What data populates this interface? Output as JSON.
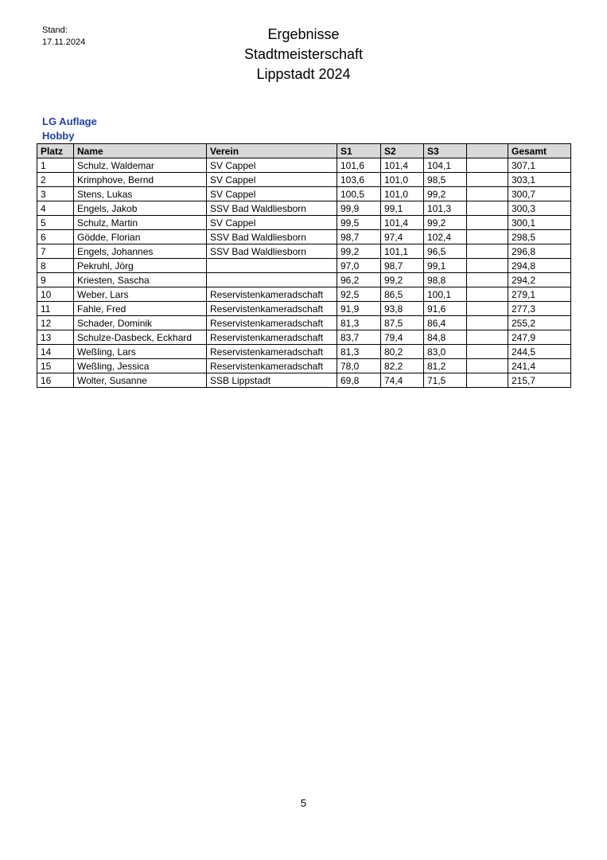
{
  "header": {
    "stand_label": "Stand:",
    "stand_date": "17.11.2024",
    "title_lines": [
      "Ergebnisse",
      "Stadtmeisterschaft",
      "Lippstadt 2024"
    ]
  },
  "section": {
    "discipline": "LG Auflage",
    "class": "Hobby",
    "color": "#1f3fa8"
  },
  "table": {
    "columns": [
      "Platz",
      "Name",
      "Verein",
      "S1",
      "S2",
      "S3",
      "",
      "Gesamt"
    ],
    "rows": [
      [
        "1",
        "Schulz, Waldemar",
        "SV Cappel",
        "101,6",
        "101,4",
        "104,1",
        "",
        "307,1"
      ],
      [
        "2",
        "Krimphove, Bernd",
        "SV Cappel",
        "103,6",
        "101,0",
        "98,5",
        "",
        "303,1"
      ],
      [
        "3",
        "Stens, Lukas",
        "SV Cappel",
        "100,5",
        "101,0",
        "99,2",
        "",
        "300,7"
      ],
      [
        "4",
        "Engels, Jakob",
        "SSV Bad Waldliesborn",
        "99,9",
        "99,1",
        "101,3",
        "",
        "300,3"
      ],
      [
        "5",
        "Schulz, Martin",
        "SV Cappel",
        "99,5",
        "101,4",
        "99,2",
        "",
        "300,1"
      ],
      [
        "6",
        "Gödde, Florian",
        "SSV Bad Waldliesborn",
        "98,7",
        "97,4",
        "102,4",
        "",
        "298,5"
      ],
      [
        "7",
        "Engels, Johannes",
        "SSV Bad Waldliesborn",
        "99,2",
        "101,1",
        "96,5",
        "",
        "296,8"
      ],
      [
        "8",
        "Pekruhl, Jörg",
        "",
        "97,0",
        "98,7",
        "99,1",
        "",
        "294,8"
      ],
      [
        "9",
        "Kriesten, Sascha",
        "",
        "96,2",
        "99,2",
        "98,8",
        "",
        "294,2"
      ],
      [
        "10",
        "Weber, Lars",
        "Reservistenkameradschaft",
        "92,5",
        "86,5",
        "100,1",
        "",
        "279,1"
      ],
      [
        "11",
        "Fahle, Fred",
        "Reservistenkameradschaft",
        "91,9",
        "93,8",
        "91,6",
        "",
        "277,3"
      ],
      [
        "12",
        "Schader, Dominik",
        "Reservistenkameradschaft",
        "81,3",
        "87,5",
        "86,4",
        "",
        "255,2"
      ],
      [
        "13",
        "Schulze-Dasbeck, Eckhard",
        "Reservistenkameradschaft",
        "83,7",
        "79,4",
        "84,8",
        "",
        "247,9"
      ],
      [
        "14",
        "Weßling, Lars",
        "Reservistenkameradschaft",
        "81,3",
        "80,2",
        "83,0",
        "",
        "244,5"
      ],
      [
        "15",
        "Weßling, Jessica",
        "Reservistenkameradschaft",
        "78,0",
        "82,2",
        "81,2",
        "",
        "241,4"
      ],
      [
        "16",
        "Wolter, Susanne",
        "SSB Lippstadt",
        "69,8",
        "74,4",
        "71,5",
        "",
        "215,7"
      ]
    ]
  },
  "footer": {
    "page_number": "5"
  }
}
